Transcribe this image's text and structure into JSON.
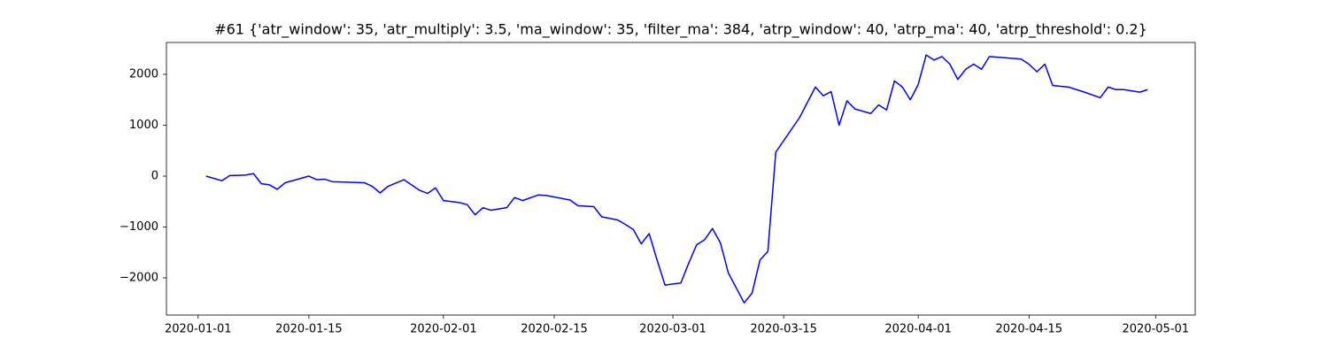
{
  "chart_data": {
    "type": "line",
    "title": "#61 {'atr_window': 35, 'atr_multiply': 3.5, 'ma_window': 35, 'filter_ma': 384, 'atrp_window': 40, 'atrp_ma': 40, 'atrp_threshold': 0.2}",
    "x": [
      "2020-01-02",
      "2020-01-04",
      "2020-01-05",
      "2020-01-07",
      "2020-01-08",
      "2020-01-09",
      "2020-01-10",
      "2020-01-11",
      "2020-01-12",
      "2020-01-15",
      "2020-01-16",
      "2020-01-17",
      "2020-01-18",
      "2020-01-22",
      "2020-01-23",
      "2020-01-24",
      "2020-01-25",
      "2020-01-27",
      "2020-01-29",
      "2020-01-30",
      "2020-01-31",
      "2020-02-01",
      "2020-02-03",
      "2020-02-04",
      "2020-02-05",
      "2020-02-06",
      "2020-02-07",
      "2020-02-09",
      "2020-02-10",
      "2020-02-11",
      "2020-02-13",
      "2020-02-14",
      "2020-02-17",
      "2020-02-18",
      "2020-02-20",
      "2020-02-21",
      "2020-02-23",
      "2020-02-24",
      "2020-02-25",
      "2020-02-26",
      "2020-02-27",
      "2020-02-28",
      "2020-02-29",
      "2020-03-02",
      "2020-03-03",
      "2020-03-04",
      "2020-03-05",
      "2020-03-06",
      "2020-03-07",
      "2020-03-08",
      "2020-03-10",
      "2020-03-11",
      "2020-03-12",
      "2020-03-13",
      "2020-03-14",
      "2020-03-17",
      "2020-03-18",
      "2020-03-19",
      "2020-03-20",
      "2020-03-21",
      "2020-03-22",
      "2020-03-23",
      "2020-03-24",
      "2020-03-26",
      "2020-03-27",
      "2020-03-28",
      "2020-03-29",
      "2020-03-30",
      "2020-03-31",
      "2020-04-01",
      "2020-04-02",
      "2020-04-03",
      "2020-04-04",
      "2020-04-05",
      "2020-04-06",
      "2020-04-07",
      "2020-04-08",
      "2020-04-09",
      "2020-04-10",
      "2020-04-14",
      "2020-04-15",
      "2020-04-16",
      "2020-04-17",
      "2020-04-18",
      "2020-04-20",
      "2020-04-22",
      "2020-04-24",
      "2020-04-25",
      "2020-04-26",
      "2020-04-27",
      "2020-04-29",
      "2020-04-30"
    ],
    "series": [
      {
        "color": "#0000ff",
        "values": [
          0,
          -90,
          10,
          20,
          50,
          -150,
          -170,
          -260,
          -130,
          0,
          -70,
          -60,
          -110,
          -130,
          -200,
          -330,
          -200,
          -70,
          -280,
          -340,
          -230,
          -480,
          -520,
          -560,
          -760,
          -620,
          -670,
          -620,
          -420,
          -480,
          -370,
          -380,
          -470,
          -580,
          -600,
          -800,
          -860,
          -950,
          -1050,
          -1330,
          -1130,
          -1650,
          -2140,
          -2100,
          -1710,
          -1350,
          -1250,
          -1030,
          -1310,
          -1900,
          -2490,
          -2300,
          -1650,
          -1480,
          470,
          1150,
          1450,
          1750,
          1580,
          1660,
          1000,
          1480,
          1320,
          1230,
          1400,
          1300,
          1870,
          1750,
          1500,
          1800,
          2380,
          2280,
          2350,
          2200,
          1900,
          2100,
          2200,
          2100,
          2350,
          2300,
          2200,
          2050,
          2200,
          1780,
          1750,
          1650,
          1540,
          1750,
          1700,
          1700,
          1650,
          1700
        ]
      }
    ],
    "xlim": [
      "2019-12-28",
      "2020-05-06"
    ],
    "xticks": [
      "2020-01-01",
      "2020-01-15",
      "2020-02-01",
      "2020-02-15",
      "2020-03-01",
      "2020-03-15",
      "2020-04-01",
      "2020-04-15",
      "2020-05-01"
    ],
    "ylim": [
      -2730,
      2626
    ],
    "yticks": [
      {
        "value": -2000,
        "label": "−2000"
      },
      {
        "value": -1000,
        "label": "−1000"
      },
      0,
      1000,
      2000
    ],
    "grid": false
  }
}
